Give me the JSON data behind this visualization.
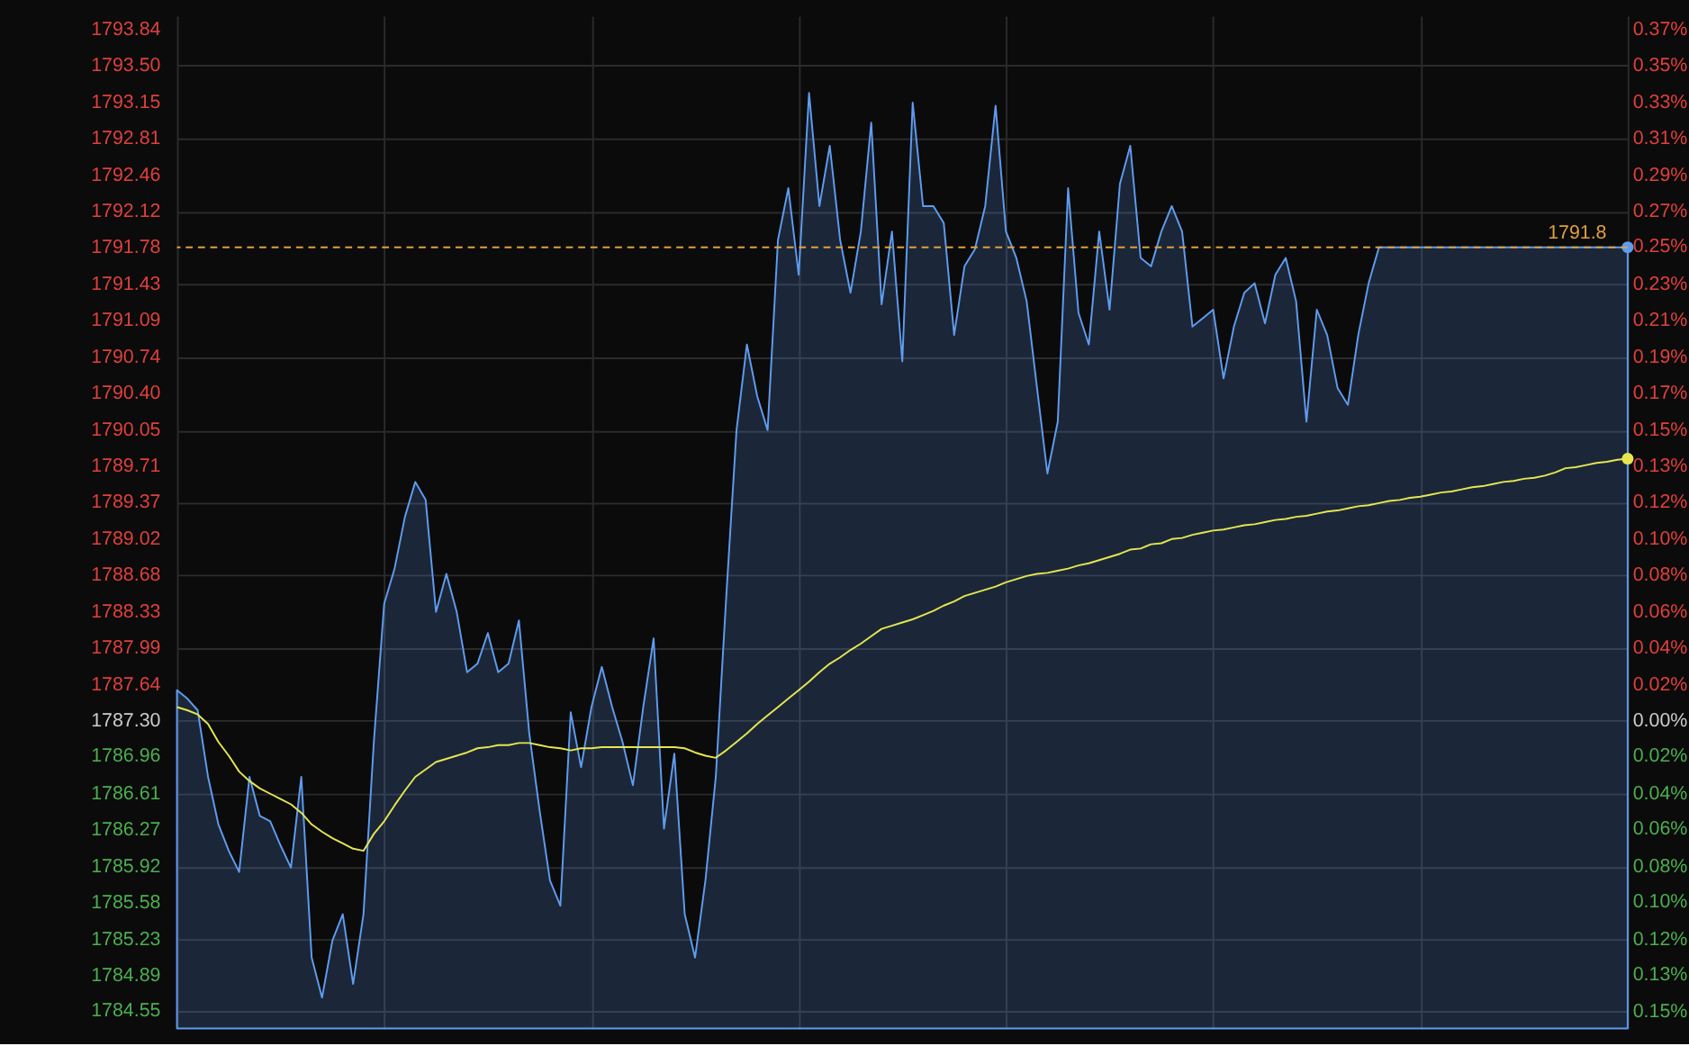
{
  "chart_data": {
    "type": "area",
    "categories": [
      null,
      null,
      null,
      null,
      null,
      null,
      null,
      null,
      null,
      null,
      null,
      null,
      null,
      null,
      null,
      null,
      null,
      null,
      null,
      null,
      null,
      null,
      null,
      null,
      null,
      null,
      null,
      null,
      null,
      null,
      null,
      null,
      null,
      null,
      null,
      null,
      null,
      null,
      null,
      null,
      null,
      null,
      null,
      null,
      null,
      null,
      null,
      null,
      null,
      null,
      null,
      null,
      null,
      null,
      null,
      null,
      null,
      null,
      null,
      null,
      null,
      null,
      null,
      null,
      null,
      null,
      null,
      null,
      null,
      null,
      null,
      null,
      null,
      null,
      null,
      null,
      null,
      null,
      null,
      null,
      null,
      null,
      null,
      null,
      null,
      null,
      null,
      null,
      null,
      null,
      null,
      null,
      null,
      null,
      null,
      null,
      null,
      null,
      null,
      null,
      null,
      null,
      null,
      null,
      null,
      null,
      null,
      null,
      null,
      null,
      null,
      null,
      null,
      null,
      null,
      null,
      null,
      null,
      null,
      null,
      null,
      null,
      null,
      null,
      null,
      null,
      null,
      null,
      null,
      null,
      null,
      null,
      null,
      null,
      null,
      null,
      null,
      null,
      null,
      null,
      null
    ],
    "series": [
      {
        "color": "#5f9cf0",
        "values": [
          1787.59,
          1787.51,
          1787.4,
          1786.77,
          1786.32,
          1786.07,
          1785.87,
          1786.77,
          1786.4,
          1786.35,
          1786.12,
          1785.91,
          1786.77,
          1785.06,
          1784.68,
          1785.22,
          1785.47,
          1784.81,
          1785.47,
          1787.1,
          1788.41,
          1788.74,
          1789.23,
          1789.56,
          1789.39,
          1788.33,
          1788.69,
          1788.33,
          1787.76,
          1787.84,
          1788.13,
          1787.76,
          1787.84,
          1788.25,
          1787.18,
          1786.45,
          1785.79,
          1785.55,
          1787.38,
          1786.86,
          1787.43,
          1787.81,
          1787.43,
          1787.1,
          1786.69,
          1787.43,
          1788.08,
          1786.28,
          1786.99,
          1785.47,
          1785.06,
          1785.79,
          1786.77,
          1788.46,
          1790.05,
          1790.86,
          1790.37,
          1790.05,
          1791.85,
          1792.34,
          1791.52,
          1793.24,
          1792.17,
          1792.74,
          1791.85,
          1791.35,
          1791.93,
          1792.96,
          1791.24,
          1791.93,
          1790.7,
          1793.15,
          1792.17,
          1792.17,
          1792.01,
          1790.95,
          1791.6,
          1791.76,
          1792.17,
          1793.12,
          1791.93,
          1791.68,
          1791.27,
          1790.45,
          1789.64,
          1790.13,
          1792.34,
          1791.16,
          1790.86,
          1791.93,
          1791.19,
          1792.38,
          1792.74,
          1791.68,
          1791.6,
          1791.93,
          1792.17,
          1791.93,
          1791.03,
          1791.11,
          1791.19,
          1790.54,
          1791.03,
          1791.35,
          1791.44,
          1791.06,
          1791.52,
          1791.68,
          1791.27,
          1790.13,
          1791.19,
          1790.95,
          1790.45,
          1790.29,
          1790.95,
          1791.44,
          1791.78,
          1791.78,
          1791.78,
          1791.78,
          1791.78,
          1791.78,
          1791.78,
          1791.78,
          1791.78,
          1791.78,
          1791.78,
          1791.78,
          1791.78,
          1791.78,
          1791.78,
          1791.78,
          1791.78,
          1791.78,
          1791.78,
          1791.78,
          1791.78,
          1791.78,
          1791.78,
          1791.78,
          1791.78
        ]
      },
      {
        "type": "line",
        "color": "#e6e650",
        "values": [
          1787.43,
          1787.4,
          1787.36,
          1787.27,
          1787.1,
          1786.97,
          1786.82,
          1786.73,
          1786.66,
          1786.61,
          1786.56,
          1786.51,
          1786.43,
          1786.32,
          1786.25,
          1786.19,
          1786.14,
          1786.09,
          1786.07,
          1786.23,
          1786.35,
          1786.5,
          1786.64,
          1786.77,
          1786.84,
          1786.91,
          1786.94,
          1786.97,
          1787.0,
          1787.04,
          1787.05,
          1787.07,
          1787.07,
          1787.09,
          1787.09,
          1787.07,
          1787.05,
          1787.04,
          1787.02,
          1787.04,
          1787.04,
          1787.05,
          1787.05,
          1787.05,
          1787.05,
          1787.05,
          1787.05,
          1787.05,
          1787.05,
          1787.04,
          1787.0,
          1786.97,
          1786.95,
          1787.02,
          1787.1,
          1787.18,
          1787.27,
          1787.35,
          1787.43,
          1787.51,
          1787.59,
          1787.67,
          1787.76,
          1787.84,
          1787.9,
          1787.97,
          1788.03,
          1788.1,
          1788.17,
          1788.2,
          1788.23,
          1788.26,
          1788.3,
          1788.34,
          1788.39,
          1788.43,
          1788.48,
          1788.51,
          1788.54,
          1788.57,
          1788.61,
          1788.64,
          1788.67,
          1788.69,
          1788.7,
          1788.72,
          1788.74,
          1788.77,
          1788.79,
          1788.82,
          1788.85,
          1788.88,
          1788.92,
          1788.93,
          1788.97,
          1788.98,
          1789.02,
          1789.03,
          1789.06,
          1789.08,
          1789.1,
          1789.11,
          1789.13,
          1789.15,
          1789.16,
          1789.18,
          1789.2,
          1789.21,
          1789.23,
          1789.24,
          1789.26,
          1789.28,
          1789.29,
          1789.31,
          1789.33,
          1789.34,
          1789.36,
          1789.38,
          1789.39,
          1789.41,
          1789.42,
          1789.44,
          1789.46,
          1789.47,
          1789.49,
          1789.51,
          1789.52,
          1789.54,
          1789.56,
          1789.57,
          1789.59,
          1789.6,
          1789.62,
          1789.65,
          1789.69,
          1789.7,
          1789.72,
          1789.74,
          1789.75,
          1789.77,
          1789.78
        ]
      }
    ],
    "ylim": [
      1784.39,
      1793.97
    ],
    "yticks": [
      1793.84,
      {
        "value": 1793.5,
        "label": "1793.50"
      },
      1793.15,
      1792.81,
      1792.46,
      1792.12,
      1791.78,
      1791.43,
      1791.09,
      1790.74,
      {
        "value": 1790.4,
        "label": "1790.40"
      },
      1790.05,
      1789.71,
      1789.37,
      1789.02,
      1788.68,
      1788.33,
      1787.99,
      1787.64,
      {
        "value": 1787.3,
        "label": "1787.30"
      },
      1786.96,
      1786.61,
      1786.27,
      1785.92,
      1785.58,
      1785.23,
      1784.89,
      1784.55
    ],
    "y2lim": [
      -0.1628,
      0.3732
    ],
    "y2ticks": [
      {
        "value": 0.3659,
        "label": "0.37%"
      },
      {
        "value": 0.3469,
        "label": "0.35%"
      },
      {
        "value": 0.3273,
        "label": "0.33%"
      },
      {
        "value": 0.3083,
        "label": "0.31%"
      },
      {
        "value": 0.2887,
        "label": "0.29%"
      },
      {
        "value": 0.2697,
        "label": "0.27%"
      },
      {
        "value": 0.2507,
        "label": "0.25%"
      },
      {
        "value": 0.2311,
        "label": "0.23%"
      },
      {
        "value": 0.2121,
        "label": "0.21%"
      },
      {
        "value": 0.1925,
        "label": "0.19%"
      },
      {
        "value": 0.1734,
        "label": "0.17%"
      },
      {
        "value": 0.1539,
        "label": "0.15%"
      },
      {
        "value": 0.1348,
        "label": "0.13%"
      },
      {
        "value": 0.1158,
        "label": "0.12%"
      },
      {
        "value": 0.0962,
        "label": "0.10%"
      },
      {
        "value": 0.0772,
        "label": "0.08%"
      },
      {
        "value": 0.0576,
        "label": "0.06%"
      },
      {
        "value": 0.0386,
        "label": "0.04%"
      },
      {
        "value": 0.019,
        "label": "0.02%"
      },
      {
        "value": 0,
        "label": "0.00%"
      },
      {
        "value": -0.019,
        "label": "0.02%"
      },
      {
        "value": -0.0386,
        "label": "0.04%"
      },
      {
        "value": -0.0576,
        "label": "0.06%"
      },
      {
        "value": -0.0772,
        "label": "0.08%"
      },
      {
        "value": -0.0962,
        "label": "0.10%"
      },
      {
        "value": -0.1158,
        "label": "0.12%"
      },
      {
        "value": -0.1348,
        "label": "0.13%"
      },
      {
        "value": -0.1539,
        "label": "0.15%"
      }
    ],
    "ref_lines": [
      {
        "axis": "y",
        "value": 1791.78,
        "label": "1791.8",
        "color": "#e0a040",
        "line_style": "dashed"
      }
    ],
    "grid": true
  }
}
